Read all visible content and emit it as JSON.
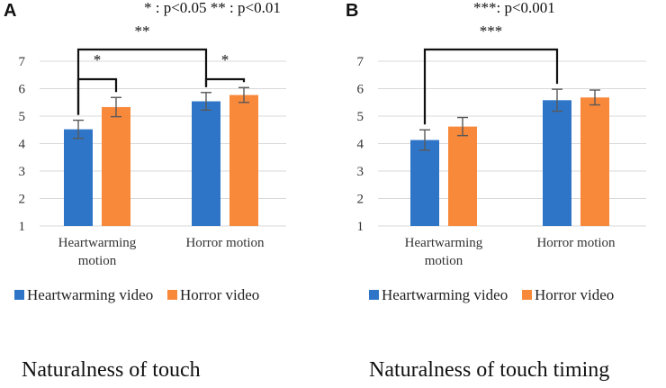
{
  "chart_data": [
    {
      "type": "bar",
      "panel_label": "A",
      "title": "Naturalness of touch",
      "significance_note": "* : p<0.05 ** : p<0.01",
      "categories": [
        "Heartwarming motion",
        "Horror motion"
      ],
      "category_lines": [
        [
          "Heartwarming",
          "motion"
        ],
        [
          "Horror motion"
        ]
      ],
      "series": [
        {
          "name": "Heartwarming video",
          "color": "#2E75C8",
          "values": [
            4.52,
            5.54
          ],
          "errors": [
            0.33,
            0.32
          ]
        },
        {
          "name": "Horror video",
          "color": "#F8883A",
          "values": [
            5.33,
            5.77
          ],
          "errors": [
            0.35,
            0.27
          ]
        }
      ],
      "ylim": [
        1,
        7
      ],
      "yticks": [
        "1",
        "2",
        "3",
        "4",
        "5",
        "6",
        "7"
      ],
      "grid": true,
      "legend_position": "bottom",
      "brackets": [
        {
          "from": [
            0,
            0
          ],
          "to": [
            0,
            1
          ],
          "label": "*"
        },
        {
          "from": [
            1,
            0
          ],
          "to": [
            1,
            1
          ],
          "label": "*"
        },
        {
          "from": [
            0,
            0
          ],
          "to": [
            1,
            0
          ],
          "label": "**"
        }
      ]
    },
    {
      "type": "bar",
      "panel_label": "B",
      "title": "Naturalness of touch timing",
      "significance_note": "***: p<0.001",
      "categories": [
        "Heartwarming motion",
        "Horror motion"
      ],
      "category_lines": [
        [
          "Heartwarming",
          "motion"
        ],
        [
          "Horror motion"
        ]
      ],
      "series": [
        {
          "name": "Heartwarming video",
          "color": "#2E75C8",
          "values": [
            4.13,
            5.58
          ],
          "errors": [
            0.37,
            0.4
          ]
        },
        {
          "name": "Horror video",
          "color": "#F8883A",
          "values": [
            4.62,
            5.68
          ],
          "errors": [
            0.33,
            0.27
          ]
        }
      ],
      "ylim": [
        1,
        7
      ],
      "yticks": [
        "1",
        "2",
        "3",
        "4",
        "5",
        "6",
        "7"
      ],
      "grid": true,
      "legend_position": "bottom",
      "brackets": [
        {
          "from": [
            0,
            0
          ],
          "to": [
            1,
            0
          ],
          "label": "***"
        }
      ]
    }
  ]
}
